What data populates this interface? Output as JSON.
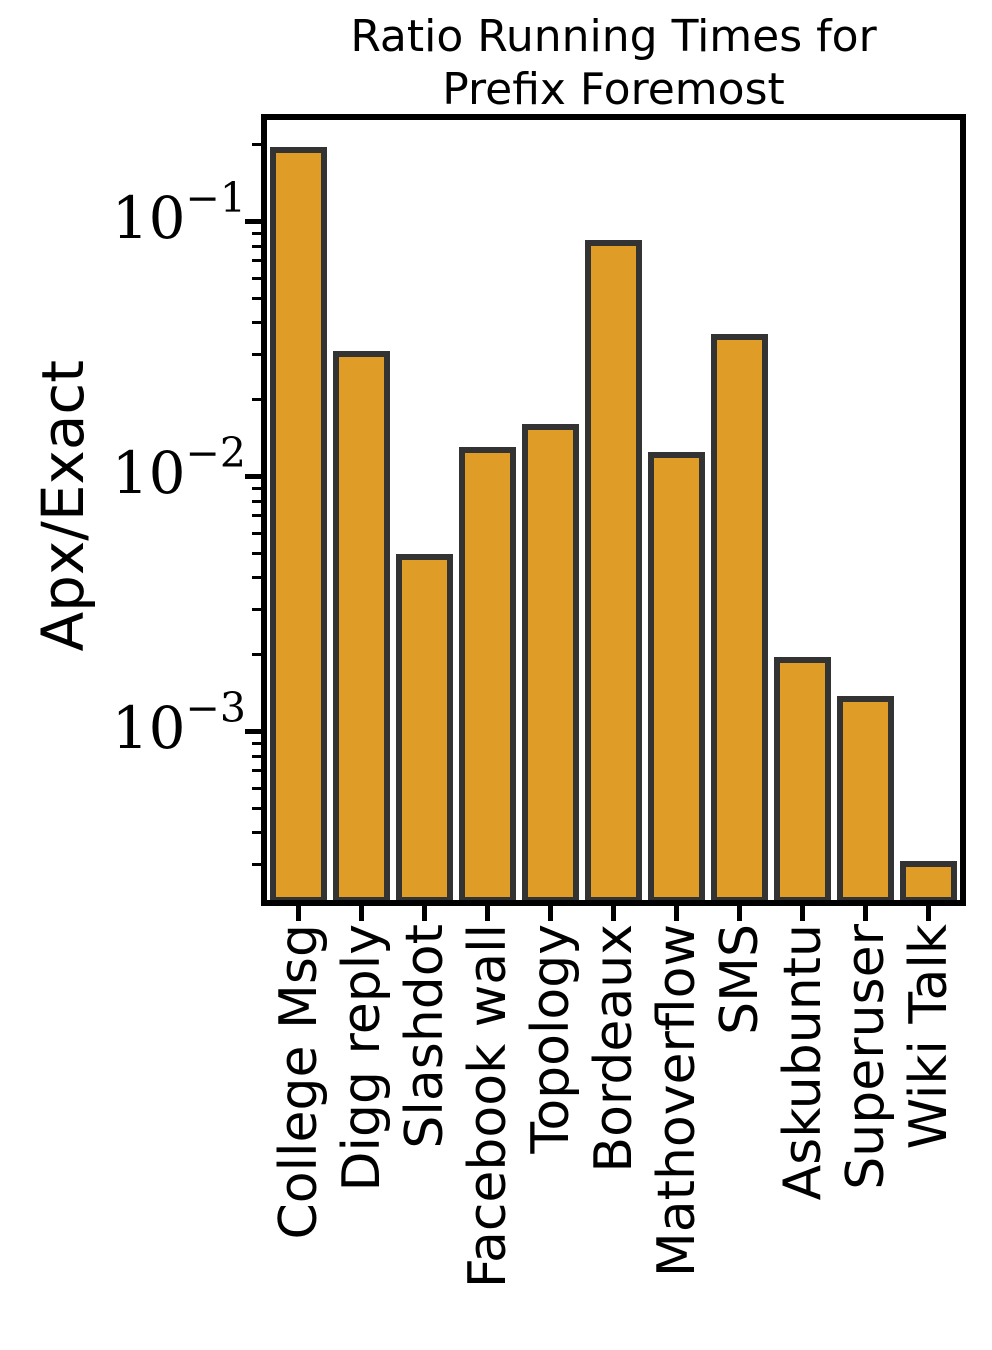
{
  "figure": {
    "title_line1": "Ratio Running Times for",
    "title_line2": "Prefix Foremost",
    "ylabel": "Apx/Exact",
    "background_color": "#FFFFFF",
    "axis_color": "#000000",
    "text_color": "#000000"
  },
  "chart_data": {
    "type": "bar",
    "title": "Ratio Running Times for Prefix Foremost",
    "xlabel": "",
    "ylabel": "Apx/Exact",
    "yscale": "log",
    "ylim": [
      0.00022,
      0.25
    ],
    "grid": false,
    "legend": null,
    "bar_fill": "#DF9C26",
    "bar_edge": "#333333",
    "categories": [
      "College Msg",
      "Digg reply",
      "Slashdot",
      "Facebook wall",
      "Topology",
      "Bordeaux",
      "Mathoverflow",
      "SMS",
      "Askubuntu",
      "Superuser",
      "Wiki Talk"
    ],
    "values": [
      0.19,
      0.03,
      0.0048,
      0.0126,
      0.0155,
      0.082,
      0.0121,
      0.035,
      0.0019,
      0.00133,
      0.0003
    ],
    "y_major_ticks": [
      {
        "value": 0.1,
        "base": "10",
        "exp": "−1"
      },
      {
        "value": 0.01,
        "base": "10",
        "exp": "−2"
      },
      {
        "value": 0.001,
        "base": "10",
        "exp": "−3"
      }
    ],
    "y_minor_ticks": [
      0.2,
      0.09,
      0.08,
      0.07,
      0.06,
      0.05,
      0.04,
      0.03,
      0.02,
      0.009,
      0.008,
      0.007,
      0.006,
      0.005,
      0.004,
      0.003,
      0.002,
      0.0009,
      0.0008,
      0.0007,
      0.0006,
      0.0005,
      0.0004,
      0.0003
    ]
  }
}
